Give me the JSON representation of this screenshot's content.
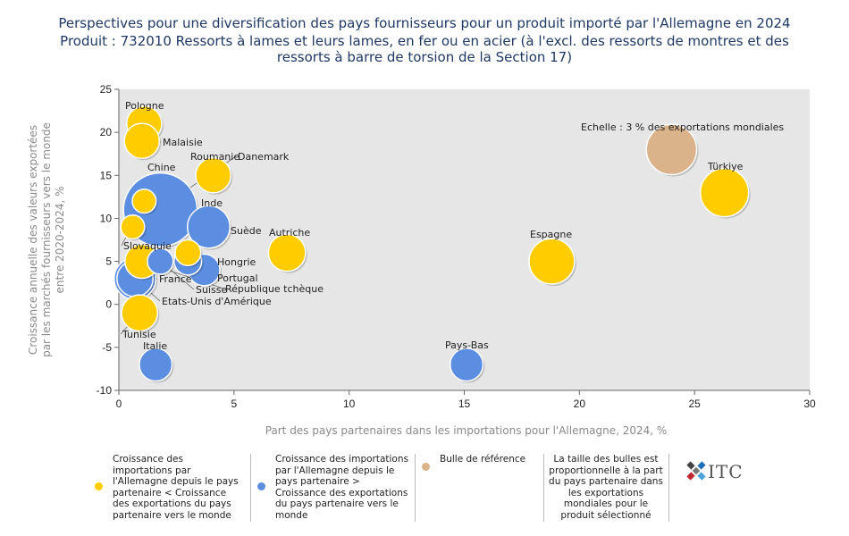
{
  "title_lines": [
    "Perspectives pour une diversification des pays fournisseurs pour un produit importé par l'Allemagne en 2024",
    "Produit : 732010 Ressorts à lames et leurs lames, en fer ou en acier (à l'excl. des ressorts de montres et des",
    "ressorts à barre de torsion de la Section 17)"
  ],
  "chart_data": {
    "type": "scatter",
    "subtype": "bubble",
    "xlabel": "Part des pays partenaires dans les importations pour l'Allemagne, 2024, %",
    "ylabel_lines": [
      "Croissance annuelle des valeurs exportées",
      "par les marchés fournisseurs vers le monde",
      "entre 2020-2024, %"
    ],
    "xlim": [
      0,
      30
    ],
    "ylim": [
      -10,
      25
    ],
    "x_ticks": [
      0,
      5,
      10,
      15,
      20,
      25,
      30
    ],
    "y_ticks": [
      -10,
      -5,
      0,
      5,
      10,
      15,
      20,
      25
    ],
    "grid": false,
    "colors": {
      "yellow": "#ffcc00",
      "blue": "#5b8de0",
      "reference": "#dab38a",
      "plot_bg": "#e6e6e6"
    },
    "points": [
      {
        "name": "Pologne",
        "x": 1.1,
        "y": 21.0,
        "size": 1.1,
        "group": "yellow"
      },
      {
        "name": "Malaisie",
        "x": 1.0,
        "y": 19.0,
        "size": 1.1,
        "group": "yellow"
      },
      {
        "name": "Danemark",
        "x": 0.6,
        "y": 9.0,
        "size": 0.3,
        "group": "yellow"
      },
      {
        "name": "Roumanie",
        "x": 4.1,
        "y": 15.0,
        "size": 1.1,
        "group": "yellow"
      },
      {
        "name": "Chine",
        "x": 1.8,
        "y": 11.0,
        "size": 7.7,
        "group": "blue"
      },
      {
        "name": "Inde",
        "x": 3.9,
        "y": 9.0,
        "size": 1.9,
        "group": "blue"
      },
      {
        "name": "Slovaquie",
        "x": 1.1,
        "y": 12.0,
        "size": 0.3,
        "group": "yellow"
      },
      {
        "name": "Suède",
        "x": 3.0,
        "y": 6.0,
        "size": 0.4,
        "group": "yellow"
      },
      {
        "name": "Hongrie",
        "x": 3.0,
        "y": 5.0,
        "size": 0.5,
        "group": "blue"
      },
      {
        "name": "Autriche",
        "x": 7.3,
        "y": 6.0,
        "size": 1.3,
        "group": "yellow"
      },
      {
        "name": "Portugal",
        "x": 3.7,
        "y": 4.0,
        "size": 0.8,
        "group": "blue"
      },
      {
        "name": "Suisse",
        "x": 1.8,
        "y": 5.0,
        "size": 0.4,
        "group": "blue"
      },
      {
        "name": "République tchèque",
        "x": 1.0,
        "y": 5.0,
        "size": 1.0,
        "group": "yellow"
      },
      {
        "name": "France",
        "x": 0.7,
        "y": 3.0,
        "size": 1.8,
        "group": "blue"
      },
      {
        "name": "Etats-Unis d'Amérique",
        "x": 0.7,
        "y": 3.0,
        "size": 1.2,
        "group": "blue"
      },
      {
        "name": "Tunisie",
        "x": 0.9,
        "y": -1.0,
        "size": 1.2,
        "group": "yellow"
      },
      {
        "name": "Italie",
        "x": 1.6,
        "y": -7.0,
        "size": 0.9,
        "group": "blue"
      },
      {
        "name": "Pays-Bas",
        "x": 15.1,
        "y": -7.0,
        "size": 0.9,
        "group": "blue"
      },
      {
        "name": "Espagne",
        "x": 18.8,
        "y": 5.0,
        "size": 2.3,
        "group": "yellow"
      },
      {
        "name": "Türkiye",
        "x": 26.3,
        "y": 13.0,
        "size": 2.7,
        "group": "yellow"
      }
    ],
    "reference_bubble": {
      "label": "Echelle : 3 % des exportations mondiales",
      "x": 24.0,
      "y": 18.0,
      "size": 3.0,
      "group": "reference"
    },
    "legend": {
      "placement": "bottom",
      "items": [
        {
          "group": "yellow",
          "text": "Croissance des importations par l'Allemagne depuis le pays partenaire < Croissance des exportations du pays partenaire vers le monde"
        },
        {
          "group": "blue",
          "text": "Croissance des importations par l'Allemagne depuis le pays partenaire > Croissance des exportations du pays partenaire vers le monde"
        },
        {
          "group": "reference",
          "text": "Bulle de référence"
        }
      ],
      "note": "La taille des bulles est proportionnelle à la part du pays partenaire dans les exportations mondiales pour le produit sélectionné"
    }
  },
  "logo_text": "ITC"
}
